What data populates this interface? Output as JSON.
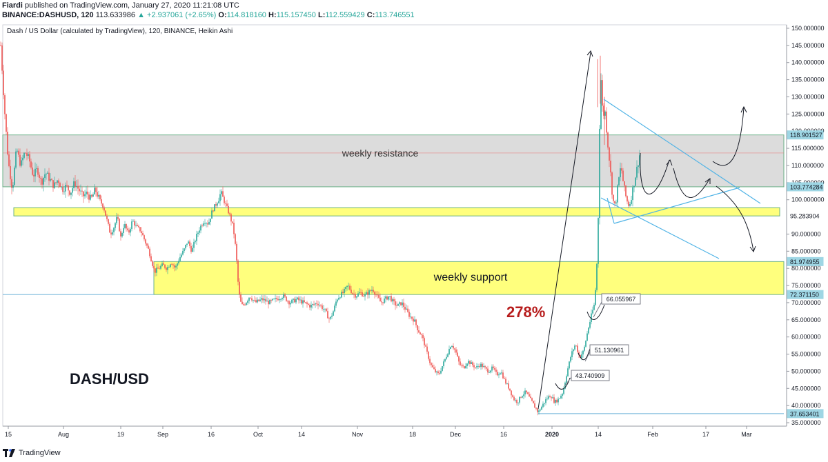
{
  "header": {
    "author": "Fiardi",
    "published_text": "published on TradingView.com, January 27, 2020 11:21:08 UTC",
    "symbol": "BINANCE:DASHUSD, 120",
    "last_price": "113.633986",
    "change": "▲ +2.937061 (+2.65%)",
    "o_label": "O:",
    "o_value": "114.818160",
    "h_label": "H:",
    "h_value": "115.157450",
    "l_label": "L:",
    "l_value": "112.559429",
    "c_label": "C:",
    "c_value": "113.746551"
  },
  "footer": {
    "brand": "TradingView"
  },
  "chart_data": {
    "type": "candlestick",
    "title": "Dash / US Dollar (calculated by TradingView), 120, BINANCE, Heikin Ashi",
    "x_tick_labels": [
      "15",
      "Aug",
      "19",
      "Sep",
      "16",
      "Oct",
      "14",
      "Nov",
      "18",
      "Dec",
      "16",
      "2020",
      "14",
      "Feb",
      "17",
      "Mar"
    ],
    "y_tick_labels": [
      "150.000000",
      "145.000000",
      "140.000000",
      "135.000000",
      "130.000000",
      "125.000000",
      "120.000000",
      "115.000000",
      "110.000000",
      "105.000000",
      "100.000000",
      "95.000000",
      "90.000000",
      "85.000000",
      "80.000000",
      "75.000000",
      "70.000000",
      "65.000000",
      "60.000000",
      "55.000000",
      "50.000000",
      "45.000000",
      "40.000000",
      "35.000000"
    ],
    "ylim": [
      34,
      151
    ],
    "price_path": [
      [
        1,
        145
      ],
      [
        6,
        128
      ],
      [
        12,
        111
      ],
      [
        18,
        103
      ],
      [
        24,
        115
      ],
      [
        30,
        110
      ],
      [
        36,
        114
      ],
      [
        42,
        112
      ],
      [
        48,
        107
      ],
      [
        54,
        109
      ],
      [
        60,
        105
      ],
      [
        66,
        108
      ],
      [
        72,
        106
      ],
      [
        78,
        104
      ],
      [
        84,
        106
      ],
      [
        90,
        103
      ],
      [
        96,
        104
      ],
      [
        102,
        102
      ],
      [
        108,
        105
      ],
      [
        114,
        103
      ],
      [
        120,
        101
      ],
      [
        126,
        102
      ],
      [
        132,
        100
      ],
      [
        138,
        103
      ],
      [
        144,
        100
      ],
      [
        150,
        98
      ],
      [
        155,
        94
      ],
      [
        160,
        90
      ],
      [
        165,
        92
      ],
      [
        170,
        95
      ],
      [
        175,
        89
      ],
      [
        180,
        93
      ],
      [
        186,
        90
      ],
      [
        192,
        94
      ],
      [
        198,
        92
      ],
      [
        204,
        91
      ],
      [
        210,
        88
      ],
      [
        216,
        85
      ],
      [
        220,
        82
      ],
      [
        224,
        79
      ],
      [
        230,
        80
      ],
      [
        236,
        81
      ],
      [
        242,
        80
      ],
      [
        248,
        82
      ],
      [
        254,
        80
      ],
      [
        260,
        83
      ],
      [
        266,
        85
      ],
      [
        272,
        88
      ],
      [
        278,
        85
      ],
      [
        284,
        89
      ],
      [
        290,
        92
      ],
      [
        296,
        94
      ],
      [
        302,
        93
      ],
      [
        308,
        97
      ],
      [
        314,
        99
      ],
      [
        320,
        102
      ],
      [
        326,
        99
      ],
      [
        332,
        96
      ],
      [
        338,
        92
      ],
      [
        342,
        85
      ],
      [
        346,
        73
      ],
      [
        350,
        69
      ],
      [
        356,
        70
      ],
      [
        362,
        72
      ],
      [
        370,
        70
      ],
      [
        380,
        71
      ],
      [
        390,
        70
      ],
      [
        400,
        71
      ],
      [
        410,
        72
      ],
      [
        420,
        70
      ],
      [
        430,
        71
      ],
      [
        440,
        70
      ],
      [
        450,
        69
      ],
      [
        460,
        70
      ],
      [
        470,
        68
      ],
      [
        478,
        65
      ],
      [
        484,
        68
      ],
      [
        488,
        71
      ],
      [
        492,
        72
      ],
      [
        498,
        73
      ],
      [
        504,
        75
      ],
      [
        510,
        73
      ],
      [
        516,
        72
      ],
      [
        522,
        73
      ],
      [
        528,
        72
      ],
      [
        534,
        73
      ],
      [
        540,
        74
      ],
      [
        546,
        72
      ],
      [
        552,
        70
      ],
      [
        558,
        71
      ],
      [
        564,
        72
      ],
      [
        570,
        70
      ],
      [
        576,
        69
      ],
      [
        582,
        70
      ],
      [
        588,
        68
      ],
      [
        594,
        66
      ],
      [
        600,
        65
      ],
      [
        606,
        62
      ],
      [
        612,
        60
      ],
      [
        618,
        56
      ],
      [
        624,
        52
      ],
      [
        630,
        50
      ],
      [
        636,
        49
      ],
      [
        642,
        52
      ],
      [
        648,
        55
      ],
      [
        654,
        58
      ],
      [
        660,
        56
      ],
      [
        666,
        52
      ],
      [
        672,
        51
      ],
      [
        678,
        53
      ],
      [
        684,
        52
      ],
      [
        690,
        51
      ],
      [
        696,
        52
      ],
      [
        702,
        51
      ],
      [
        708,
        50
      ],
      [
        714,
        51
      ],
      [
        720,
        49
      ],
      [
        726,
        50
      ],
      [
        732,
        47
      ],
      [
        738,
        45
      ],
      [
        744,
        42
      ],
      [
        750,
        41
      ],
      [
        756,
        43
      ],
      [
        762,
        44
      ],
      [
        768,
        42
      ],
      [
        774,
        40
      ],
      [
        780,
        38
      ],
      [
        786,
        40
      ],
      [
        792,
        42
      ],
      [
        798,
        43
      ],
      [
        804,
        41
      ],
      [
        810,
        42
      ],
      [
        816,
        44
      ],
      [
        822,
        50
      ],
      [
        828,
        55
      ],
      [
        834,
        58
      ],
      [
        840,
        54
      ],
      [
        846,
        56
      ],
      [
        852,
        62
      ],
      [
        858,
        67
      ],
      [
        862,
        70
      ],
      [
        866,
        85
      ],
      [
        868,
        105
      ],
      [
        870,
        138
      ],
      [
        872,
        132
      ],
      [
        874,
        122
      ],
      [
        876,
        128
      ],
      [
        880,
        118
      ],
      [
        884,
        110
      ],
      [
        888,
        100
      ],
      [
        892,
        98
      ],
      [
        896,
        105
      ],
      [
        900,
        110
      ],
      [
        904,
        104
      ],
      [
        908,
        100
      ],
      [
        912,
        98
      ],
      [
        916,
        102
      ],
      [
        920,
        106
      ],
      [
        924,
        110
      ],
      [
        928,
        114
      ]
    ],
    "zones": [
      {
        "label": "weekly resistance",
        "y_top": 118.901527,
        "y_bottom": 103.774284,
        "color": "#d8d8d8"
      },
      {
        "label": "",
        "y_top": 97.7,
        "y_bottom": 95.283904,
        "color": "#ffff66"
      },
      {
        "label": "weekly support",
        "y_top": 81.974955,
        "y_bottom": 72.37115,
        "color": "#ffff66"
      }
    ],
    "price_axis_labels": [
      {
        "text": "118.901527",
        "value": 118.901527,
        "bg": "#9ed6e4"
      },
      {
        "text": "103.774284",
        "value": 103.774284,
        "bg": "#9ed6e4"
      },
      {
        "text": "95.283904",
        "value": 95.283904,
        "bg": "#ffffff"
      },
      {
        "text": "81.974955",
        "value": 81.974955,
        "bg": "#9ed6e4"
      },
      {
        "text": "72.371150",
        "value": 72.37115,
        "bg": "#9ed6e4"
      },
      {
        "text": "37.653401",
        "value": 37.653401,
        "bg": "#9ed6e4"
      }
    ],
    "last_price_line": 113.633986,
    "callouts": [
      "66.055967",
      "51.130961",
      "43.740909"
    ],
    "annotations": [
      "278%",
      "DASH/USD"
    ],
    "colors": {
      "up": "#26a69a",
      "down": "#ef5350",
      "trendline": "#4fb3e6",
      "annotation_red": "#b71c1c"
    }
  }
}
